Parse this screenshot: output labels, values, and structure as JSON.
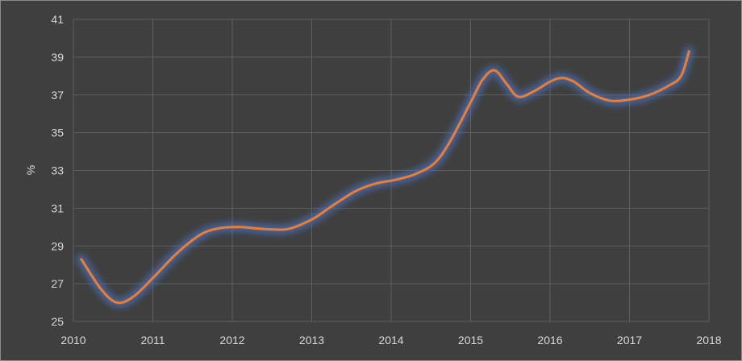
{
  "chart_data": {
    "type": "line",
    "title": "",
    "xlabel": "",
    "ylabel": "%",
    "xlim": [
      2010,
      2018
    ],
    "ylim": [
      25,
      41
    ],
    "x_ticks": [
      "2010",
      "2011",
      "2012",
      "2013",
      "2014",
      "2015",
      "2016",
      "2017",
      "2018"
    ],
    "y_ticks": [
      "25",
      "27",
      "29",
      "31",
      "33",
      "35",
      "37",
      "39",
      "41"
    ],
    "grid": true,
    "legend": "none",
    "colors": {
      "line": "#ed7d31",
      "glow": "#4a6fb5",
      "grid": "#5f5f5f",
      "text": "#d9d9d9",
      "background": "#3f3f3f"
    },
    "series": [
      {
        "x": [
          2010.1,
          2010.35,
          2010.55,
          2010.75,
          2011.0,
          2011.3,
          2011.6,
          2011.85,
          2012.1,
          2012.4,
          2012.7,
          2013.0,
          2013.25,
          2013.55,
          2013.8,
          2014.05,
          2014.3,
          2014.55,
          2014.75,
          2015.0,
          2015.15,
          2015.3,
          2015.45,
          2015.6,
          2015.8,
          2016.0,
          2016.15,
          2016.3,
          2016.5,
          2016.75,
          2017.0,
          2017.25,
          2017.5,
          2017.65,
          2017.75
        ],
        "values": [
          28.3,
          26.7,
          26.0,
          26.3,
          27.3,
          28.6,
          29.6,
          29.95,
          30.0,
          29.9,
          29.9,
          30.4,
          31.1,
          31.9,
          32.3,
          32.5,
          32.8,
          33.4,
          34.6,
          36.6,
          37.8,
          38.3,
          37.6,
          36.9,
          37.2,
          37.7,
          37.9,
          37.7,
          37.1,
          36.7,
          36.75,
          37.0,
          37.5,
          38.0,
          39.3
        ]
      }
    ]
  }
}
